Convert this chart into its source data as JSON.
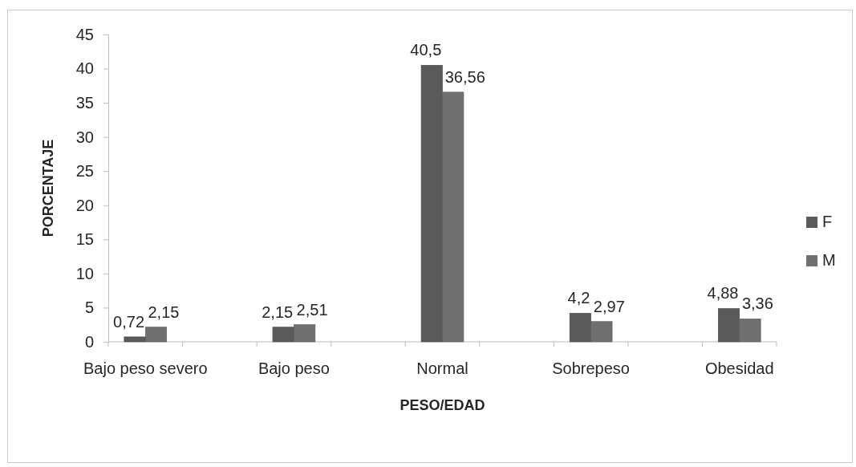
{
  "chart_data": {
    "type": "bar",
    "xlabel": "PESO/EDAD",
    "ylabel": "PORCENTAJE",
    "categories": [
      "Bajo peso severo",
      null,
      "Bajo peso",
      null,
      "Normal",
      null,
      "Sobrepeso",
      null,
      "Obesidad"
    ],
    "series": [
      {
        "name": "F",
        "color": "#5a5a5a",
        "values": [
          0.72,
          null,
          2.15,
          null,
          40.5,
          null,
          4.2,
          null,
          4.88
        ],
        "value_labels": [
          "0,72",
          null,
          "2,15",
          null,
          "40,5",
          null,
          "4,2",
          null,
          "4,88"
        ]
      },
      {
        "name": "M",
        "color": "#707070",
        "values": [
          2.15,
          null,
          2.51,
          null,
          36.56,
          null,
          2.97,
          null,
          3.36
        ],
        "value_labels": [
          "2,15",
          null,
          "2,51",
          null,
          "36,56",
          null,
          "2,97",
          null,
          "3,36"
        ]
      }
    ],
    "ylim": [
      0,
      45
    ],
    "yticks": [
      0,
      5,
      10,
      15,
      20,
      25,
      30,
      35,
      40,
      45
    ],
    "grid": false,
    "legend": "right"
  }
}
